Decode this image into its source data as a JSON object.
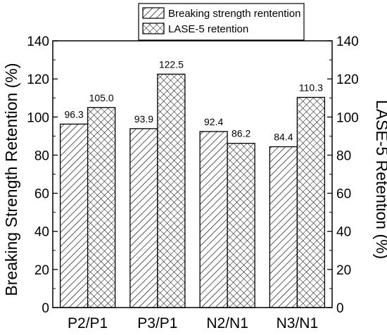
{
  "chart_data": {
    "type": "bar",
    "categories": [
      "P2/P1",
      "P3/P1",
      "N2/N1",
      "N3/N1"
    ],
    "series": [
      {
        "name": "Breaking strength rentention",
        "values": [
          96.3,
          93.9,
          92.4,
          84.4
        ],
        "labels": [
          "96.3",
          "93.9",
          "92.4",
          "84.4"
        ],
        "pattern": "diagonal-hatch"
      },
      {
        "name": "LASE-5 retention",
        "values": [
          105.0,
          122.5,
          86.2,
          110.3
        ],
        "labels": [
          "105.0",
          "122.5",
          "86.2",
          "110.3"
        ],
        "pattern": "crosshatch"
      }
    ],
    "ylabel": "Breaking Strength Retention (%)",
    "y2label": "LASE-5 Retention (%)",
    "ylim": [
      0,
      140
    ],
    "y2lim": [
      0,
      140
    ],
    "yticks": [
      0,
      20,
      40,
      60,
      80,
      100,
      120,
      140
    ],
    "grid": false,
    "legend_position": "top-right"
  }
}
